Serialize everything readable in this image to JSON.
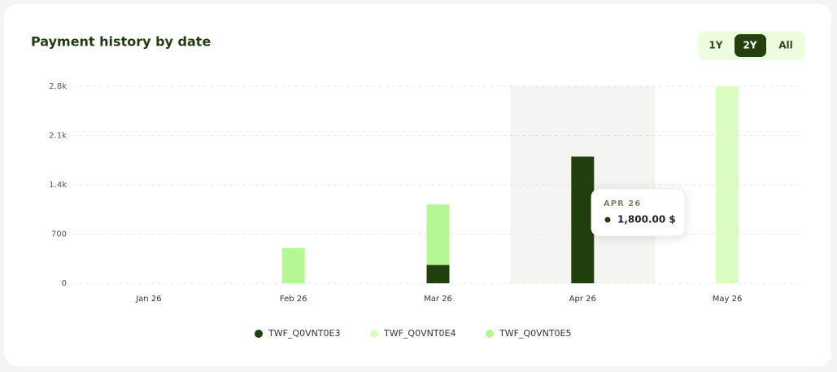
{
  "chart_data": {
    "type": "bar",
    "stacked": true,
    "title": "Payment history by date",
    "range_options": [
      "1Y",
      "2Y",
      "All"
    ],
    "categories": [
      "Jan 26",
      "Feb 26",
      "Mar 26",
      "Apr 26",
      "May 26"
    ],
    "series": [
      {
        "name": "TWF_Q0VNT0E3",
        "color": "#22400d",
        "values": [
          0,
          0,
          260,
          1800,
          0
        ]
      },
      {
        "name": "TWF_Q0VNT0E4",
        "color": "#dcfdc2",
        "values": [
          0,
          0,
          0,
          0,
          2800
        ]
      },
      {
        "name": "TWF_Q0VNT0E5",
        "color": "#b5f792",
        "values": [
          0,
          500,
          860,
          0,
          0
        ]
      }
    ],
    "ylim": [
      0,
      2800
    ],
    "yticks": [
      0,
      700,
      {
        "value": 1400,
        "label": "1.4k"
      },
      {
        "value": 2100,
        "label": "2.1k"
      },
      {
        "value": 2800,
        "label": "2.8k"
      }
    ],
    "grid": true,
    "tooltip": {
      "title": "APR 26",
      "text": "1,800.00 $"
    }
  }
}
